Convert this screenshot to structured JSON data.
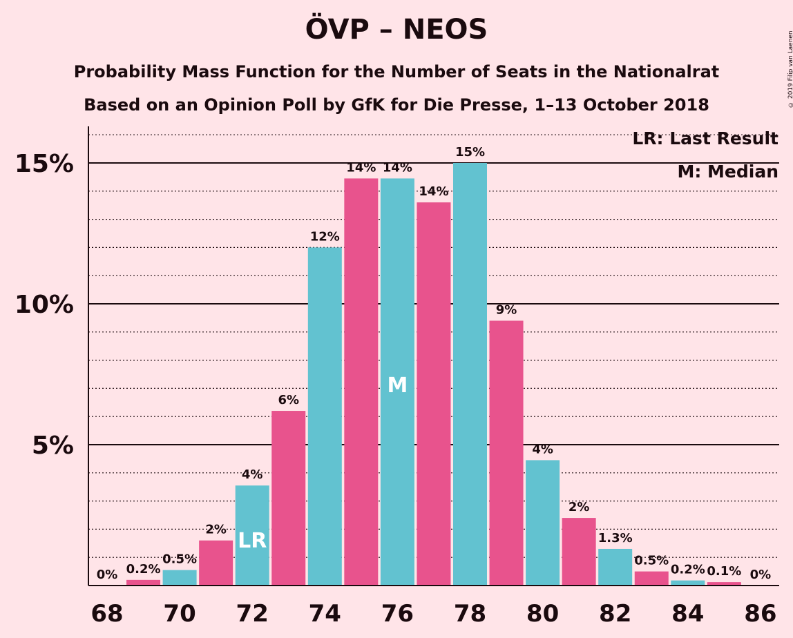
{
  "copyright": "© 2019 Filip van Laenen",
  "chart_data": {
    "type": "bar",
    "title": "ÖVP – NEOS",
    "subtitle": [
      "Probability Mass Function for the Number of Seats in the Nationalrat",
      "Based on an Opinion Poll by GfK for Die Presse, 1–13 October 2018"
    ],
    "x": [
      68,
      69,
      70,
      71,
      72,
      73,
      74,
      75,
      76,
      77,
      78,
      79,
      80,
      81,
      82,
      83,
      84,
      85,
      86
    ],
    "values": [
      0,
      0.2,
      0.55,
      1.6,
      3.55,
      6.2,
      12.0,
      14.45,
      14.45,
      13.6,
      15.0,
      9.4,
      4.45,
      2.4,
      1.3,
      0.5,
      0.18,
      0.12,
      0
    ],
    "data_labels": [
      "0%",
      "0.2%",
      "0.5%",
      "2%",
      "4%",
      "6%",
      "12%",
      "14%",
      "14%",
      "14%",
      "15%",
      "9%",
      "4%",
      "2%",
      "1.3%",
      "0.5%",
      "0.2%",
      "0.1%",
      "0%"
    ],
    "x_ticks": [
      "68",
      "70",
      "72",
      "74",
      "76",
      "78",
      "80",
      "82",
      "84",
      "86"
    ],
    "y_ticks": [
      "5%",
      "10%",
      "15%"
    ],
    "ylim": [
      0,
      16.5
    ],
    "last_result_seat": 72,
    "median_seat": 76,
    "bar_markers": {
      "lr": "LR",
      "median": "M"
    },
    "legend": [
      "LR: Last Result",
      "M: Median"
    ],
    "legend_position": "top-right",
    "grid": true,
    "colors": {
      "pink": "#E8538D",
      "teal": "#62C2D0",
      "background": "#FFE4E8",
      "text": "#1a0a0e"
    }
  }
}
